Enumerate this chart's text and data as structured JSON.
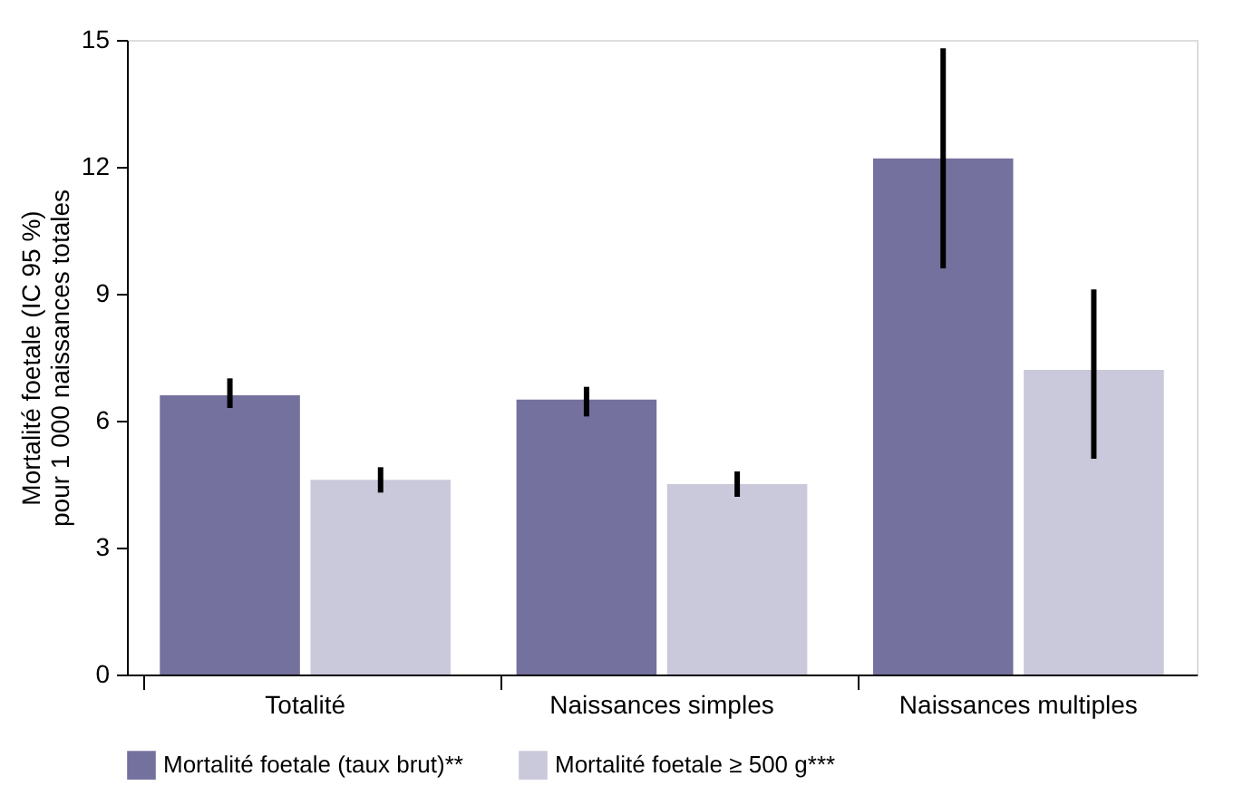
{
  "chart_data": {
    "type": "bar",
    "ylabel": "Mortalité foetale (IC 95 %)\npour 1 000 naissances totales",
    "categories": [
      "Totalité",
      "Naissances simples",
      "Naissances multiples"
    ],
    "series": [
      {
        "name": "Mortalité foetale (taux brut)**",
        "color": "#74719e",
        "values": [
          6.6,
          6.5,
          12.2
        ],
        "errors": [
          [
            6.3,
            7.0
          ],
          [
            6.1,
            6.8
          ],
          [
            9.6,
            14.8
          ]
        ]
      },
      {
        "name": "Mortalité foetale ≥ 500 g***",
        "color": "#cac9db",
        "values": [
          4.6,
          4.5,
          7.2
        ],
        "errors": [
          [
            4.3,
            4.9
          ],
          [
            4.2,
            4.8
          ],
          [
            5.1,
            9.1
          ]
        ]
      }
    ],
    "ylim": [
      0,
      15
    ],
    "yticks": [
      0,
      3,
      6,
      9,
      12,
      15
    ],
    "grid": false,
    "legend": "bottom"
  }
}
